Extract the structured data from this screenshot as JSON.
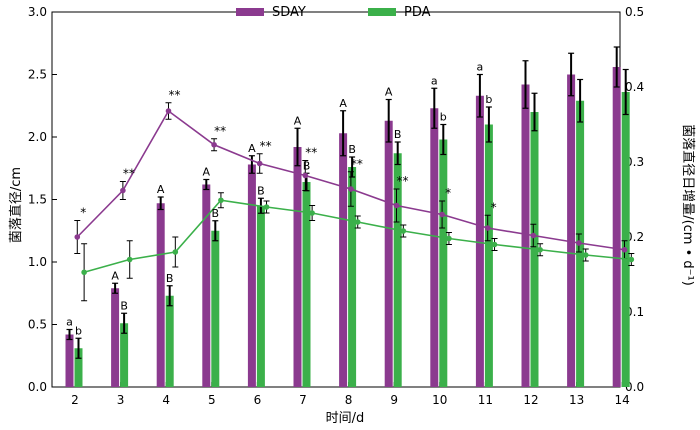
{
  "chart_data": {
    "type": "bar",
    "xlabel": "时间/d",
    "ylabel_left": "菌落直径/cm",
    "ylabel_right": "菌落直径日增量/(cm • d⁻¹)",
    "ylim_left": [
      0,
      3.0
    ],
    "ylim_right": [
      0,
      0.5
    ],
    "yticks_left": [
      "0.0",
      "0.5",
      "1.0",
      "1.5",
      "2.0",
      "2.5",
      "3.0"
    ],
    "yticks_right": [
      "0.0",
      "0.1",
      "0.2",
      "0.3",
      "0.4",
      "0.5"
    ],
    "categories": [
      "2",
      "3",
      "4",
      "5",
      "6",
      "7",
      "8",
      "9",
      "10",
      "11",
      "12",
      "13",
      "14"
    ],
    "legend": {
      "placement": "top-center"
    },
    "bar_series": [
      {
        "name": "SDAY",
        "color": "#8b3a8f",
        "values": [
          0.42,
          0.79,
          1.47,
          1.62,
          1.78,
          1.92,
          2.03,
          2.13,
          2.23,
          2.33,
          2.42,
          2.5,
          2.56
        ],
        "errors": [
          0.04,
          0.04,
          0.05,
          0.04,
          0.07,
          0.15,
          0.18,
          0.17,
          0.16,
          0.17,
          0.19,
          0.17,
          0.16
        ],
        "letters": [
          "a",
          "A",
          "A",
          "A",
          "A",
          "A",
          "A",
          "A",
          "a",
          "a",
          "",
          "",
          ""
        ]
      },
      {
        "name": "PDA",
        "color": "#3bb04a",
        "values": [
          0.31,
          0.51,
          0.73,
          1.25,
          1.45,
          1.64,
          1.76,
          1.87,
          1.98,
          2.1,
          2.2,
          2.29,
          2.36
        ],
        "errors": [
          0.08,
          0.08,
          0.08,
          0.08,
          0.06,
          0.07,
          0.08,
          0.09,
          0.12,
          0.14,
          0.15,
          0.17,
          0.18
        ],
        "letters": [
          "b",
          "B",
          "B",
          "B",
          "B",
          "B",
          "B",
          "B",
          "b",
          "b",
          "",
          "",
          ""
        ]
      }
    ],
    "line_series": [
      {
        "color": "#8b3a8f",
        "axis": "right",
        "x": [
          2,
          3,
          4,
          5,
          6,
          7,
          8,
          9,
          10,
          11,
          12,
          13,
          14
        ],
        "values": [
          0.2,
          0.262,
          0.368,
          0.323,
          0.298,
          0.282,
          0.264,
          0.242,
          0.23,
          0.212,
          0.202,
          0.192,
          0.183
        ],
        "errors": [
          0.022,
          0.012,
          0.011,
          0.008,
          0.013,
          0.02,
          0.023,
          0.022,
          0.018,
          0.017,
          0.015,
          0.012,
          0.012
        ],
        "marks": [
          "*",
          "**",
          "**",
          "**",
          "**",
          "**",
          "**",
          "**",
          "*",
          "*",
          "",
          "",
          ""
        ]
      },
      {
        "color": "#3bb04a",
        "axis": "right",
        "x": [
          2,
          3,
          4,
          5,
          6,
          7,
          8,
          9,
          10,
          11,
          12,
          13,
          14
        ],
        "values": [
          0.153,
          0.17,
          0.18,
          0.249,
          0.24,
          0.232,
          0.22,
          0.208,
          0.198,
          0.19,
          0.183,
          0.176,
          0.17
        ],
        "errors": [
          0.038,
          0.025,
          0.02,
          0.01,
          0.008,
          0.01,
          0.008,
          0.008,
          0.008,
          0.008,
          0.008,
          0.008,
          0.008
        ]
      }
    ]
  }
}
